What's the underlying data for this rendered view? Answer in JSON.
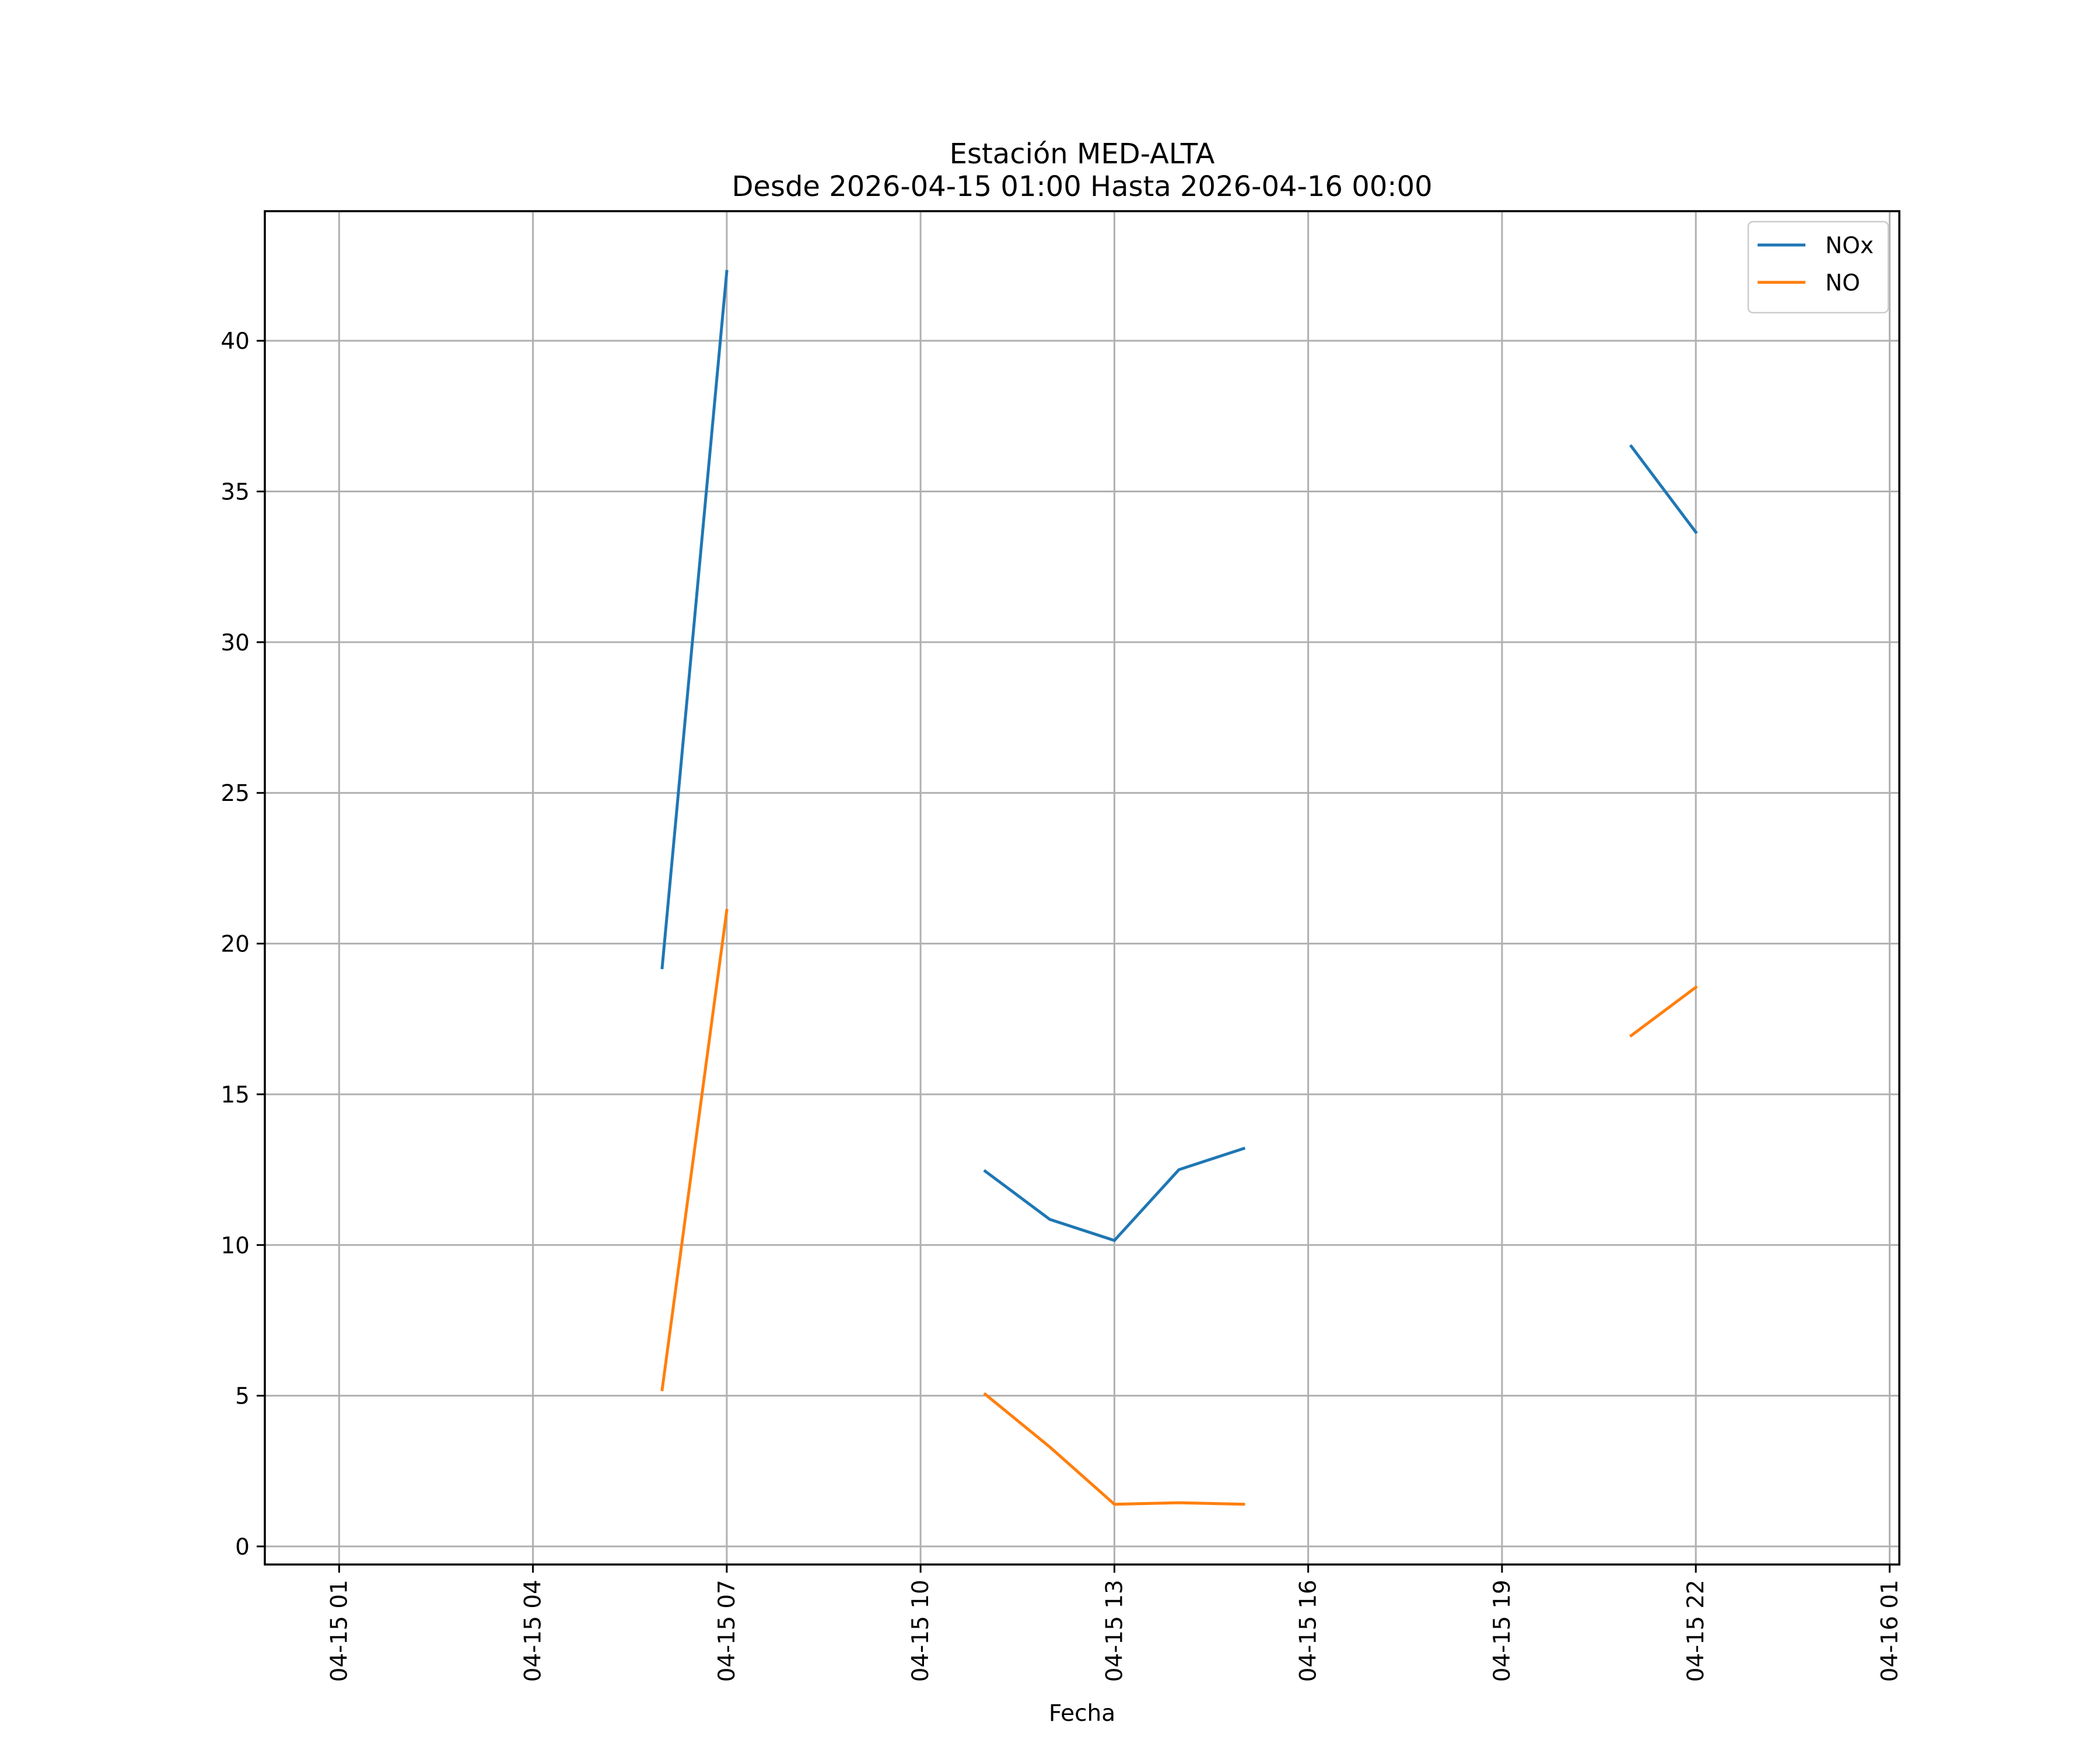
{
  "chart_data": {
    "type": "line",
    "title": "Estación MED-ALTA",
    "subtitle": "Desde 2026-04-15 01:00 Hasta 2026-04-16 00:00",
    "xlabel": "Fecha",
    "ylabel": "",
    "x_ticks": [
      {
        "t": "2026-04-15 01:00",
        "label": "04-15 01"
      },
      {
        "t": "2026-04-15 04:00",
        "label": "04-15 04"
      },
      {
        "t": "2026-04-15 07:00",
        "label": "04-15 07"
      },
      {
        "t": "2026-04-15 10:00",
        "label": "04-15 10"
      },
      {
        "t": "2026-04-15 13:00",
        "label": "04-15 13"
      },
      {
        "t": "2026-04-15 16:00",
        "label": "04-15 16"
      },
      {
        "t": "2026-04-15 19:00",
        "label": "04-15 19"
      },
      {
        "t": "2026-04-15 22:00",
        "label": "04-15 22"
      },
      {
        "t": "2026-04-16 01:00",
        "label": "04-16 01"
      }
    ],
    "y_ticks": [
      0,
      5,
      10,
      15,
      20,
      25,
      30,
      35,
      40
    ],
    "xlim": [
      "2026-04-14 23:51",
      "2026-04-16 01:09"
    ],
    "ylim": [
      -0.6,
      44.3
    ],
    "grid": true,
    "legend_position": "top-right",
    "series": [
      {
        "name": "NOx",
        "color": "#1f77b4",
        "segments": [
          [
            [
              "2026-04-15 06:00",
              19.2
            ],
            [
              "2026-04-15 07:00",
              42.3
            ]
          ],
          [
            [
              "2026-04-15 11:00",
              12.45
            ],
            [
              "2026-04-15 12:00",
              10.85
            ],
            [
              "2026-04-15 13:00",
              10.15
            ],
            [
              "2026-04-15 14:00",
              12.5
            ],
            [
              "2026-04-15 15:00",
              13.2
            ]
          ],
          [
            [
              "2026-04-15 21:00",
              36.5
            ],
            [
              "2026-04-15 22:00",
              33.65
            ]
          ]
        ]
      },
      {
        "name": "NO",
        "color": "#ff7f0e",
        "segments": [
          [
            [
              "2026-04-15 06:00",
              5.2
            ],
            [
              "2026-04-15 07:00",
              21.1
            ]
          ],
          [
            [
              "2026-04-15 11:00",
              5.05
            ],
            [
              "2026-04-15 12:00",
              3.3
            ],
            [
              "2026-04-15 13:00",
              1.4
            ],
            [
              "2026-04-15 14:00",
              1.45
            ],
            [
              "2026-04-15 15:00",
              1.4
            ]
          ],
          [
            [
              "2026-04-15 21:00",
              16.95
            ],
            [
              "2026-04-15 22:00",
              18.55
            ]
          ]
        ]
      }
    ]
  }
}
